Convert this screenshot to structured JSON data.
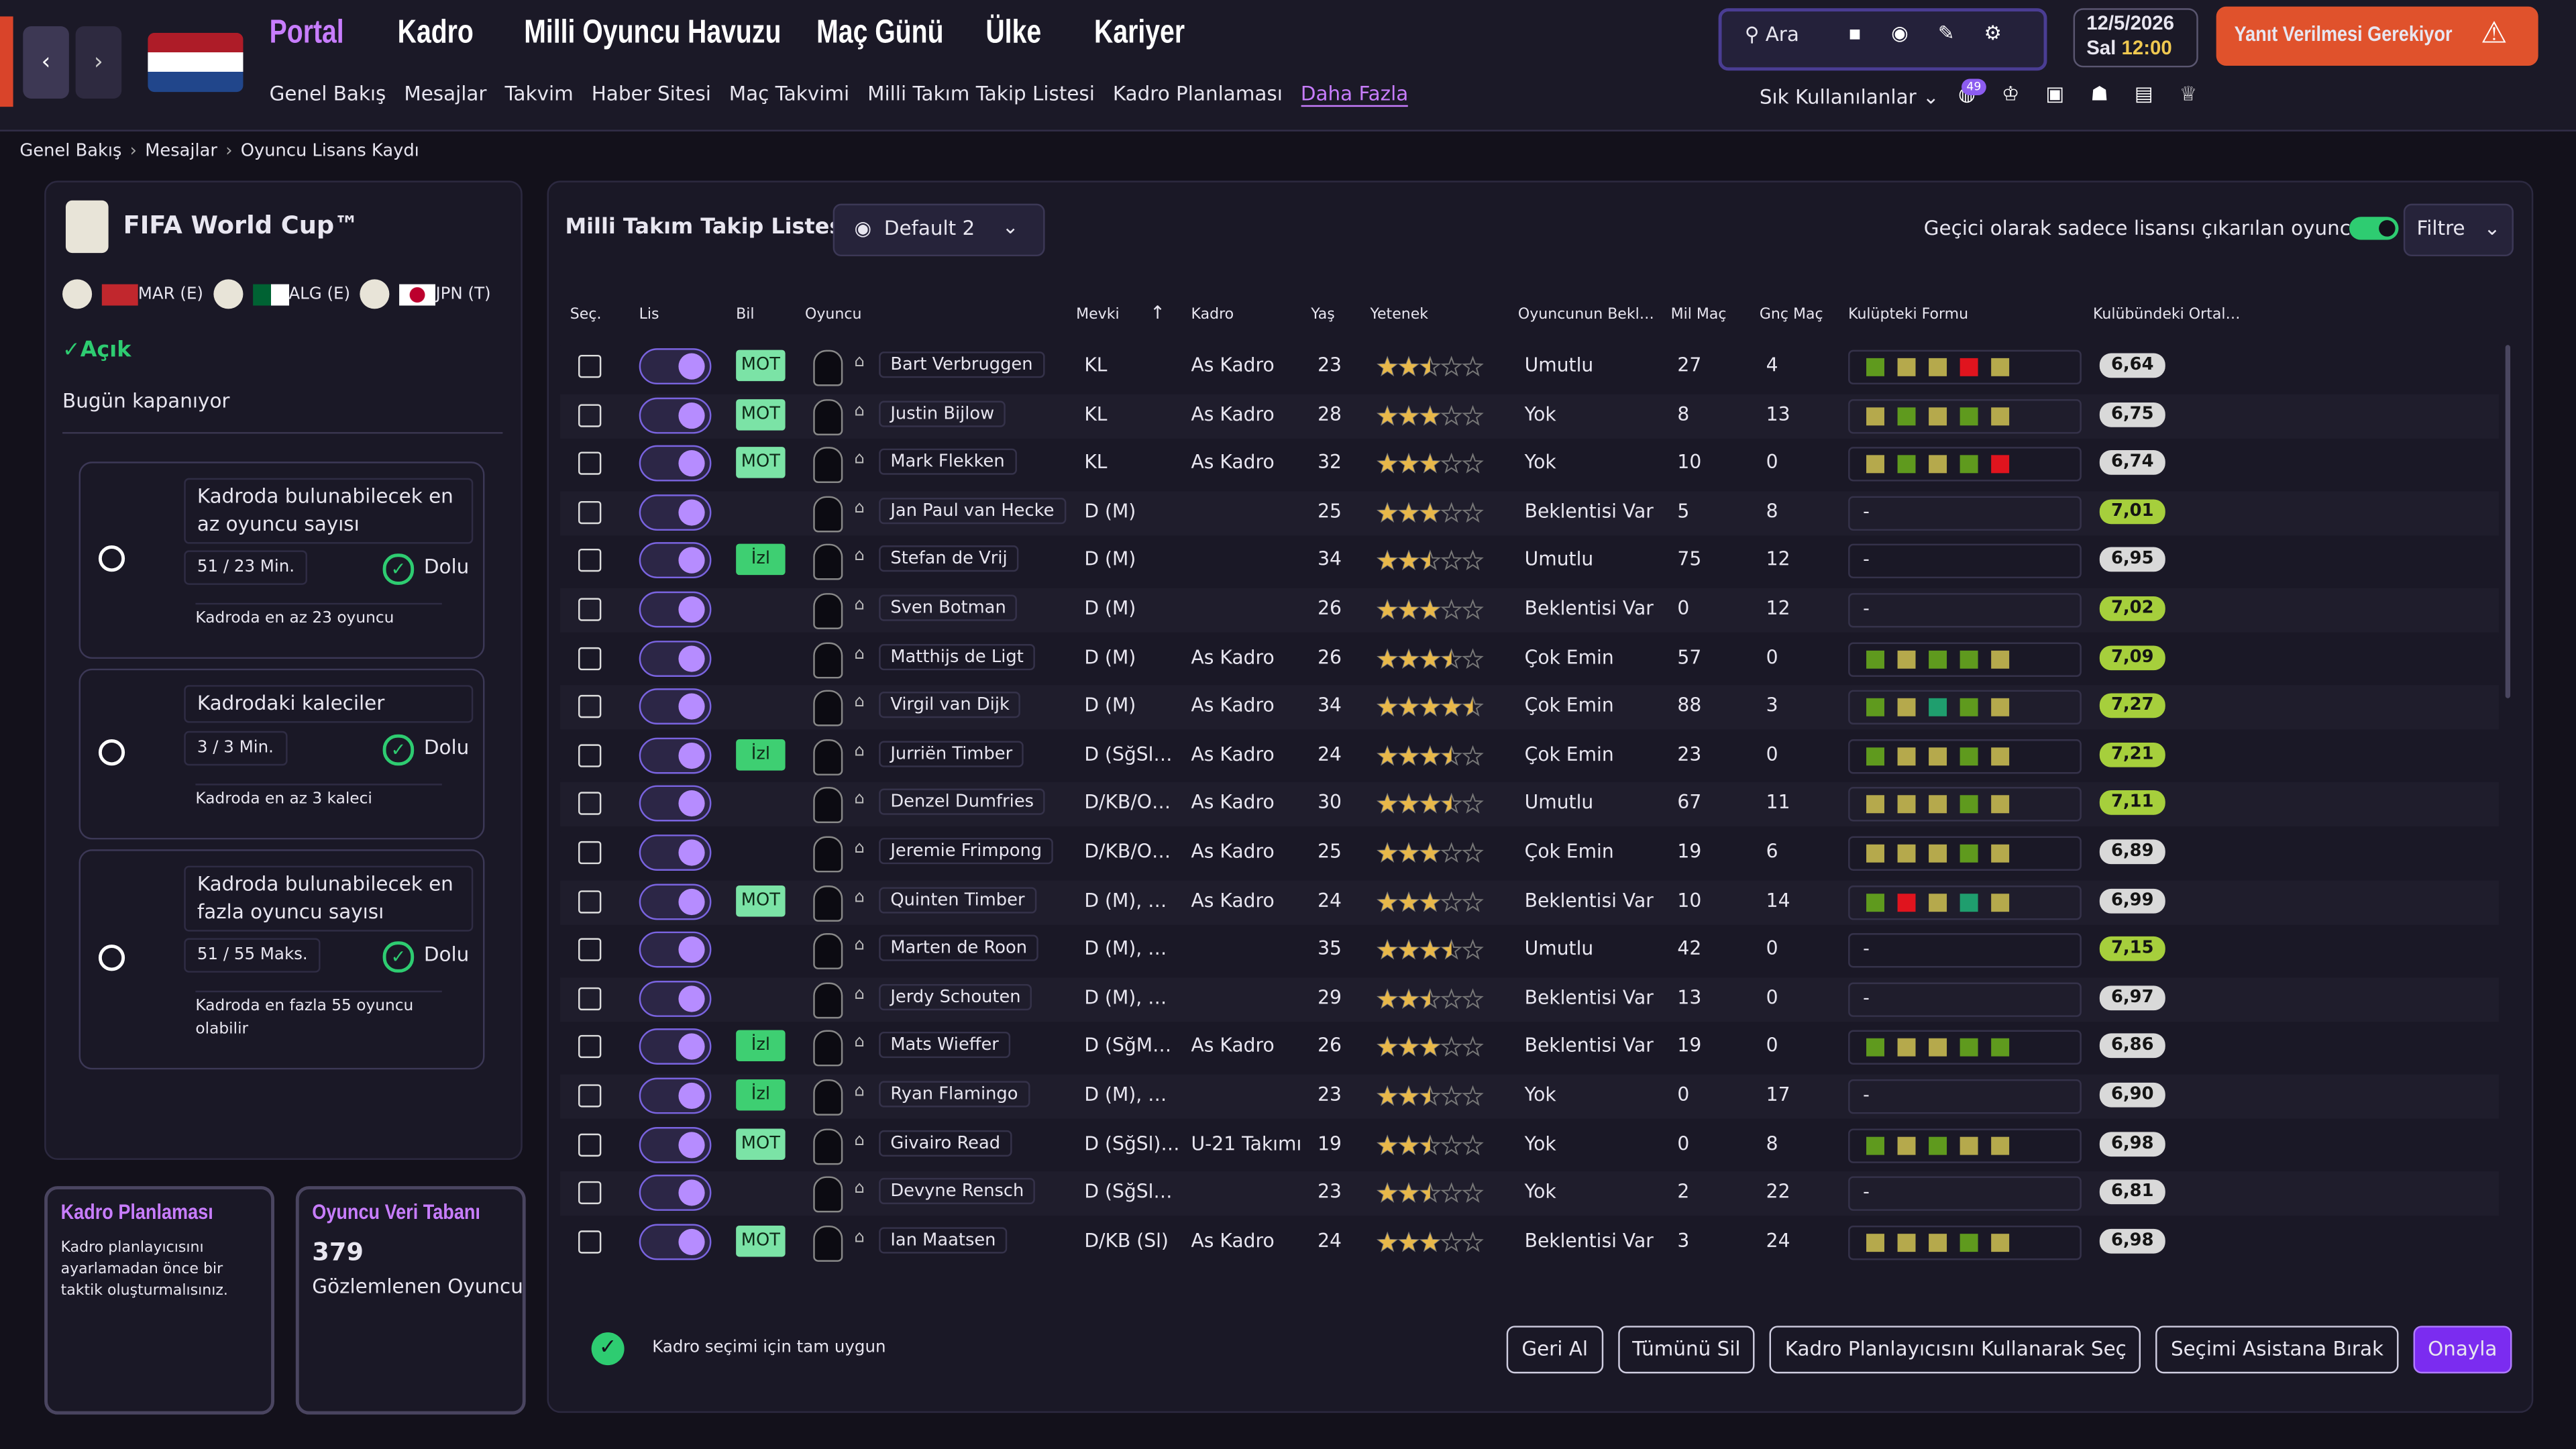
{
  "nav": {
    "items": [
      "Portal",
      "Kadro",
      "Milli Oyuncu Havuzu",
      "Maç Günü",
      "Ülke",
      "Kariyer"
    ],
    "sub": [
      "Genel Bakış",
      "Mesajlar",
      "Takvim",
      "Haber Sitesi",
      "Maç Takvimi",
      "Milli Takım Takip Listesi",
      "Kadro Planlaması",
      "Daha Fazla"
    ],
    "search": "Ara",
    "date": "12/5/2026",
    "day": "Sal",
    "time": "12:00",
    "alert": "Yanıt Verilmesi Gerekiyor",
    "favorites": "Sık Kullanılanlar",
    "badge": "49"
  },
  "breadcrumb": [
    "Genel Bakış",
    "Mesajlar",
    "Oyuncu Lisans Kaydı"
  ],
  "competition": {
    "title": "FIFA World Cup™",
    "groups": [
      "MAR (E)",
      "ALG (E)",
      "JPN (T)"
    ],
    "status": "Açık",
    "closing": "Bugün kapanıyor"
  },
  "rules": [
    {
      "title": "Kadroda bulunabilecek en az oyuncu sayısı",
      "count": "51 / 23 Min.",
      "state": "Dolu",
      "note": "Kadroda en az 23 oyuncu"
    },
    {
      "title": "Kadrodaki kaleciler",
      "count": "3 / 3 Min.",
      "state": "Dolu",
      "note": "Kadroda en az 3 kaleci"
    },
    {
      "title": "Kadroda bulunabilecek en fazla oyuncu sayısı",
      "count": "51 / 55 Maks.",
      "state": "Dolu",
      "note": "Kadroda en fazla 55 oyuncu olabilir"
    }
  ],
  "cards": {
    "planning": {
      "title": "Kadro Planlaması",
      "text": "Kadro planlayıcısını ayarlamadan önce bir taktik oluşturmalısınız."
    },
    "database": {
      "title": "Oyuncu Veri Tabanı",
      "count": 379,
      "label": "Gözlemlenen Oyuncu"
    }
  },
  "list": {
    "title": "Milli Takım Takip Listesi",
    "view": "Default 2",
    "toggle_label": "Geçici olarak sadece lisansı çıkarılan oyuncular",
    "filter": "Filtre",
    "columns": [
      "Seç.",
      "Lis",
      "Bil",
      "Oyuncu",
      "Mevki",
      "Kadro",
      "Yaş",
      "Yetenek",
      "Oyuncunun Bekl…",
      "Mil Maç",
      "Gnç Maç",
      "Kulüpteki Formu",
      "Kulübündeki Ortal…"
    ],
    "rows": [
      {
        "name": "Bart Verbruggen",
        "pos": "KL",
        "squad": "As Kadro",
        "age": 23,
        "stars": 2.5,
        "exp": "Umutlu",
        "caps": 27,
        "youth": 4,
        "bil": "MOT",
        "form": [
          "#5f9a1e",
          "#b5a94c",
          "#b5a94c",
          "#e0141e",
          "#b5a94c"
        ],
        "rating": "6,64",
        "rating_color": "#d9d9d9"
      },
      {
        "name": "Justin Bijlow",
        "pos": "KL",
        "squad": "As Kadro",
        "age": 28,
        "stars": 3,
        "exp": "Yok",
        "caps": 8,
        "youth": 13,
        "bil": "MOT",
        "form": [
          "#b5a94c",
          "#5f9a1e",
          "#b5a94c",
          "#5f9a1e",
          "#b5a94c"
        ],
        "rating": "6,75",
        "rating_color": "#d9d9d9"
      },
      {
        "name": "Mark Flekken",
        "pos": "KL",
        "squad": "As Kadro",
        "age": 32,
        "stars": 3,
        "exp": "Yok",
        "caps": 10,
        "youth": 0,
        "bil": "MOT",
        "form": [
          "#b5a94c",
          "#5f9a1e",
          "#b5a94c",
          "#5f9a1e",
          "#e0141e"
        ],
        "rating": "6,74",
        "rating_color": "#d9d9d9"
      },
      {
        "name": "Jan Paul van Hecke",
        "pos": "D (M)",
        "squad": null,
        "age": 25,
        "stars": 3,
        "exp": "Beklentisi Var",
        "caps": 5,
        "youth": 8,
        "bil": null,
        "form": "-",
        "rating": "7,01",
        "rating_color": "#a6cf3c"
      },
      {
        "name": "Stefan de Vrij",
        "pos": "D (M)",
        "squad": null,
        "age": 34,
        "stars": 2.5,
        "exp": "Umutlu",
        "caps": 75,
        "youth": 12,
        "bil": "İzl",
        "form": "-",
        "rating": "6,95",
        "rating_color": "#d9d9d9"
      },
      {
        "name": "Sven Botman",
        "pos": "D (M)",
        "squad": null,
        "age": 26,
        "stars": 3,
        "exp": "Beklentisi Var",
        "caps": 0,
        "youth": 12,
        "bil": null,
        "form": "-",
        "rating": "7,02",
        "rating_color": "#a6cf3c"
      },
      {
        "name": "Matthijs de Ligt",
        "pos": "D (M)",
        "squad": "As Kadro",
        "age": 26,
        "stars": 3.5,
        "exp": "Çok Emin",
        "caps": 57,
        "youth": 0,
        "bil": null,
        "form": [
          "#5f9a1e",
          "#b5a94c",
          "#5f9a1e",
          "#5f9a1e",
          "#b5a94c"
        ],
        "rating": "7,09",
        "rating_color": "#a6cf3c"
      },
      {
        "name": "Virgil van Dijk",
        "pos": "D (M)",
        "squad": "As Kadro",
        "age": 34,
        "stars": 4.5,
        "exp": "Çok Emin",
        "caps": 88,
        "youth": 3,
        "bil": null,
        "form": [
          "#5f9a1e",
          "#b5a94c",
          "#1f9e6e",
          "#5f9a1e",
          "#b5a94c"
        ],
        "rating": "7,27",
        "rating_color": "#a6cf3c"
      },
      {
        "name": "Jurriën Timber",
        "pos": "D (SğSl…",
        "squad": "As Kadro",
        "age": 24,
        "stars": 3.5,
        "exp": "Çok Emin",
        "caps": 23,
        "youth": 0,
        "bil": "İzl",
        "form": [
          "#5f9a1e",
          "#b5a94c",
          "#b5a94c",
          "#5f9a1e",
          "#b5a94c"
        ],
        "rating": "7,21",
        "rating_color": "#a6cf3c"
      },
      {
        "name": "Denzel Dumfries",
        "pos": "D/KB/O…",
        "squad": "As Kadro",
        "age": 30,
        "stars": 3.5,
        "exp": "Umutlu",
        "caps": 67,
        "youth": 11,
        "bil": null,
        "form": [
          "#b5a94c",
          "#b5a94c",
          "#b5a94c",
          "#5f9a1e",
          "#b5a94c"
        ],
        "rating": "7,11",
        "rating_color": "#a6cf3c"
      },
      {
        "name": "Jeremie Frimpong",
        "pos": "D/KB/O…",
        "squad": "As Kadro",
        "age": 25,
        "stars": 3,
        "exp": "Çok Emin",
        "caps": 19,
        "youth": 6,
        "bil": null,
        "form": [
          "#b5a94c",
          "#b5a94c",
          "#b5a94c",
          "#5f9a1e",
          "#b5a94c"
        ],
        "rating": "6,89",
        "rating_color": "#d9d9d9"
      },
      {
        "name": "Quinten Timber",
        "pos": "D (M), …",
        "squad": "As Kadro",
        "age": 24,
        "stars": 3,
        "exp": "Beklentisi Var",
        "caps": 10,
        "youth": 14,
        "bil": "MOT",
        "form": [
          "#5f9a1e",
          "#e0141e",
          "#b5a94c",
          "#1f9e6e",
          "#b5a94c"
        ],
        "rating": "6,99",
        "rating_color": "#d9d9d9"
      },
      {
        "name": "Marten de Roon",
        "pos": "D (M), …",
        "squad": null,
        "age": 35,
        "stars": 3.5,
        "exp": "Umutlu",
        "caps": 42,
        "youth": 0,
        "bil": null,
        "form": "-",
        "rating": "7,15",
        "rating_color": "#a6cf3c"
      },
      {
        "name": "Jerdy Schouten",
        "pos": "D (M), …",
        "squad": null,
        "age": 29,
        "stars": 2.5,
        "exp": "Beklentisi Var",
        "caps": 13,
        "youth": 0,
        "bil": null,
        "form": "-",
        "rating": "6,97",
        "rating_color": "#d9d9d9"
      },
      {
        "name": "Mats Wieffer",
        "pos": "D (SğM…",
        "squad": "As Kadro",
        "age": 26,
        "stars": 3,
        "exp": "Beklentisi Var",
        "caps": 19,
        "youth": 0,
        "bil": "İzl",
        "form": [
          "#5f9a1e",
          "#b5a94c",
          "#b5a94c",
          "#5f9a1e",
          "#5f9a1e"
        ],
        "rating": "6,86",
        "rating_color": "#d9d9d9"
      },
      {
        "name": "Ryan Flamingo",
        "pos": "D (M), …",
        "squad": null,
        "age": 23,
        "stars": 2.5,
        "exp": "Yok",
        "caps": 0,
        "youth": 17,
        "bil": "İzl",
        "form": "-",
        "rating": "6,90",
        "rating_color": "#d9d9d9"
      },
      {
        "name": "Givairo Read",
        "pos": "D (SğSl)…",
        "squad": "U-21 Takımı",
        "age": 19,
        "stars": 2.5,
        "exp": "Yok",
        "caps": 0,
        "youth": 8,
        "bil": "MOT",
        "form": [
          "#5f9a1e",
          "#b5a94c",
          "#5f9a1e",
          "#b5a94c",
          "#b5a94c"
        ],
        "rating": "6,98",
        "rating_color": "#d9d9d9"
      },
      {
        "name": "Devyne Rensch",
        "pos": "D (SğSl…",
        "squad": null,
        "age": 23,
        "stars": 2.5,
        "exp": "Yok",
        "caps": 2,
        "youth": 22,
        "bil": null,
        "form": "-",
        "rating": "6,81",
        "rating_color": "#d9d9d9"
      },
      {
        "name": "Ian Maatsen",
        "pos": "D/KB (Sl)",
        "squad": "As Kadro",
        "age": 24,
        "stars": 3,
        "exp": "Beklentisi Var",
        "caps": 3,
        "youth": 24,
        "bil": "MOT",
        "form": [
          "#b5a94c",
          "#b5a94c",
          "#b5a94c",
          "#5f9a1e",
          "#b5a94c"
        ],
        "rating": "6,98",
        "rating_color": "#d9d9d9"
      }
    ]
  },
  "footer": {
    "status": "Kadro seçimi için tam uygun",
    "buttons": [
      "Geri Al",
      "Tümünü Sil",
      "Kadro Planlayıcısını Kullanarak Seç",
      "Seçimi Asistana Bırak",
      "Onayla"
    ]
  }
}
